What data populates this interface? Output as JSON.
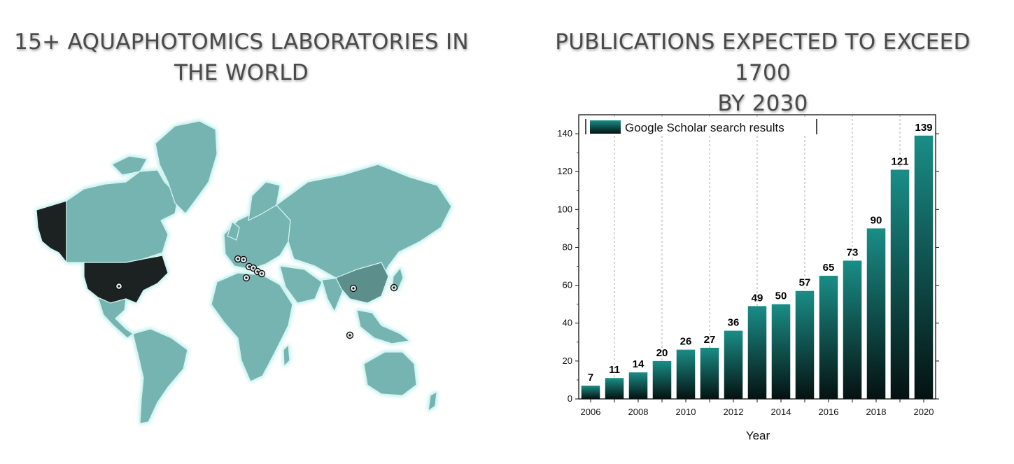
{
  "left_panel": {
    "title_line1": "15+ AQUAPHOTOMICS LABORATORIES IN",
    "title_line2": "THE WORLD",
    "colors": {
      "land": "#76b4b2",
      "land_glow": "#c8f3f1",
      "highlight_dark": "#1c2424",
      "highlight_medium": "#5b8f8c",
      "marker": "#111111"
    },
    "highlighted_regions": [
      "Alaska",
      "United States",
      "China"
    ],
    "lab_markers": [
      "United States",
      "Europe",
      "Europe",
      "Europe",
      "Europe",
      "Europe",
      "Europe",
      "Europe",
      "China",
      "Japan",
      "Southeast Asia"
    ]
  },
  "right_panel": {
    "title_line1": "PUBLICATIONS EXPECTED TO EXCEED 1700",
    "title_line2": "BY 2030"
  },
  "chart_data": {
    "type": "bar",
    "title": "",
    "xlabel": "Year",
    "ylabel": "",
    "legend": {
      "label": "Google Scholar search results",
      "placement": "top-left"
    },
    "categories": [
      "2006",
      "2007",
      "2008",
      "2009",
      "2010",
      "2011",
      "2012",
      "2013",
      "2014",
      "2015",
      "2016",
      "2017",
      "2018",
      "2019",
      "2020"
    ],
    "x_tick_labels": [
      "2006",
      "2008",
      "2010",
      "2012",
      "2014",
      "2016",
      "2018",
      "2020"
    ],
    "values": [
      7,
      11,
      14,
      20,
      26,
      27,
      36,
      49,
      50,
      57,
      65,
      73,
      90,
      121,
      139
    ],
    "ylim": [
      0,
      150
    ],
    "yticks": [
      0,
      20,
      40,
      60,
      80,
      100,
      120,
      140
    ],
    "grid": "vertical dashed",
    "bar_color_top": "#1a8d87",
    "bar_color_bottom": "#041211"
  }
}
